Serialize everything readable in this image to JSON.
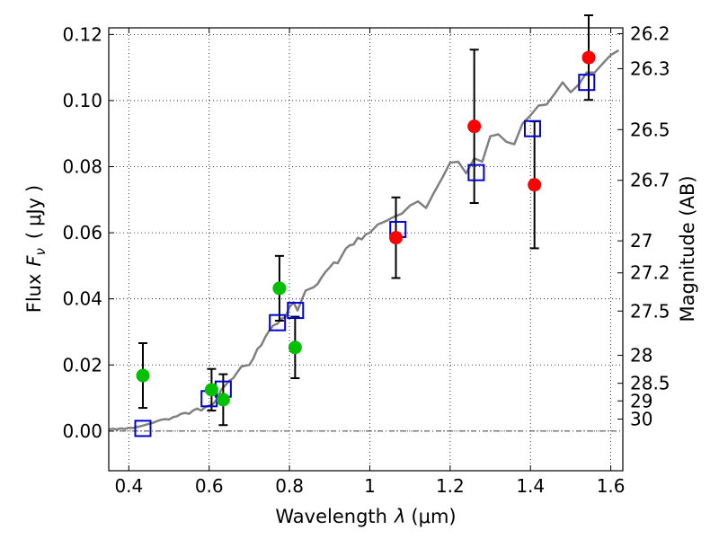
{
  "chart_data": {
    "type": "scatter",
    "xlabel_prefix": "Wavelength",
    "xlabel_symbol": "λ",
    "xlabel_unit": "(μm)",
    "ylabel_prefix": "Flux",
    "ylabel_symbol": "F",
    "ylabel_subscript": "ν",
    "ylabel_unit_open": "(",
    "ylabel_unit": "μJy",
    "ylabel_unit_close": ")",
    "y2label": "Magnitude (AB)",
    "xlim": [
      0.35,
      1.63
    ],
    "ylim": [
      -0.012,
      0.122
    ],
    "xticks": [
      0.4,
      0.6,
      0.8,
      1.0,
      1.2,
      1.4,
      1.6
    ],
    "xtick_labels": [
      "0.4",
      "0.6",
      "0.8",
      "1",
      "1.2",
      "1.4",
      "1.6"
    ],
    "yticks": [
      0.0,
      0.02,
      0.04,
      0.06,
      0.08,
      0.1,
      0.12
    ],
    "ytick_labels": [
      "0.00",
      "0.02",
      "0.04",
      "0.06",
      "0.08",
      "0.10",
      "0.12"
    ],
    "y2ticks": [
      26.2,
      26.3,
      26.5,
      26.7,
      27,
      27.2,
      27.5,
      28,
      28.5,
      29,
      30
    ],
    "y2tick_labels": [
      "26.2",
      "26.3",
      "26.5",
      "26.7",
      "27",
      "27.2",
      "27.5",
      "28",
      "28.5",
      "29",
      "30"
    ],
    "grid": true,
    "colors": {
      "model": "#808080",
      "green_points": "#00c000",
      "red_points": "#ff0000",
      "squares": "#0000cc",
      "errorbars": "#000000",
      "zero_line": "#000000"
    },
    "model_spectrum": {
      "x": [
        0.35,
        0.36,
        0.37,
        0.38,
        0.39,
        0.4,
        0.41,
        0.42,
        0.43,
        0.44,
        0.45,
        0.46,
        0.47,
        0.48,
        0.49,
        0.5,
        0.51,
        0.52,
        0.53,
        0.54,
        0.55,
        0.56,
        0.57,
        0.58,
        0.59,
        0.6,
        0.61,
        0.62,
        0.63,
        0.64,
        0.65,
        0.66,
        0.67,
        0.68,
        0.69,
        0.7,
        0.71,
        0.72,
        0.73,
        0.74,
        0.75,
        0.76,
        0.77,
        0.78,
        0.79,
        0.8,
        0.81,
        0.82,
        0.83,
        0.84,
        0.85,
        0.86,
        0.87,
        0.88,
        0.89,
        0.9,
        0.91,
        0.92,
        0.93,
        0.94,
        0.95,
        0.96,
        0.97,
        0.98,
        0.99,
        1.0,
        1.02,
        1.04,
        1.06,
        1.08,
        1.1,
        1.12,
        1.14,
        1.16,
        1.18,
        1.2,
        1.22,
        1.24,
        1.26,
        1.28,
        1.3,
        1.32,
        1.34,
        1.36,
        1.38,
        1.4,
        1.42,
        1.44,
        1.46,
        1.48,
        1.5,
        1.52,
        1.54,
        1.56,
        1.58,
        1.6,
        1.62
      ],
      "y": [
        0.0005,
        0.0007,
        0.0005,
        0.0008,
        0.0006,
        0.001,
        0.0009,
        0.0012,
        0.0015,
        0.0018,
        0.0022,
        0.0025,
        0.003,
        0.0034,
        0.0036,
        0.0035,
        0.0042,
        0.0045,
        0.0052,
        0.0055,
        0.0052,
        0.0062,
        0.0068,
        0.0062,
        0.0072,
        0.0078,
        0.0082,
        0.0098,
        0.0125,
        0.0138,
        0.0152,
        0.016,
        0.0178,
        0.0195,
        0.0198,
        0.02,
        0.022,
        0.0248,
        0.026,
        0.0285,
        0.0305,
        0.032,
        0.0325,
        0.034,
        0.0345,
        0.0375,
        0.039,
        0.0365,
        0.0395,
        0.0425,
        0.043,
        0.0435,
        0.0445,
        0.0465,
        0.0482,
        0.0495,
        0.051,
        0.0508,
        0.053,
        0.0552,
        0.0562,
        0.0565,
        0.0585,
        0.058,
        0.0595,
        0.06,
        0.0625,
        0.0635,
        0.0648,
        0.0658,
        0.0682,
        0.0695,
        0.0675,
        0.0722,
        0.0765,
        0.0812,
        0.0815,
        0.078,
        0.0825,
        0.0815,
        0.0892,
        0.0898,
        0.0875,
        0.0868,
        0.093,
        0.0955,
        0.0985,
        0.0988,
        0.102,
        0.1055,
        0.1025,
        0.1048,
        0.1085,
        0.1085,
        0.1112,
        0.1138,
        0.1152
      ]
    },
    "green_points": [
      {
        "x": 0.435,
        "y": 0.0168,
        "err": 0.0098
      },
      {
        "x": 0.606,
        "y": 0.0125,
        "err": 0.0063
      },
      {
        "x": 0.635,
        "y": 0.0095,
        "err": 0.0077
      },
      {
        "x": 0.775,
        "y": 0.0432,
        "err": 0.0098
      },
      {
        "x": 0.814,
        "y": 0.0253,
        "err": 0.0093
      }
    ],
    "red_points": [
      {
        "x": 1.065,
        "y": 0.0585,
        "err": 0.0122
      },
      {
        "x": 1.26,
        "y": 0.0922,
        "err": 0.0232
      },
      {
        "x": 1.41,
        "y": 0.0745,
        "err": 0.0192
      },
      {
        "x": 1.545,
        "y": 0.113,
        "err": 0.0128
      }
    ],
    "squares": [
      {
        "x": 0.435,
        "y": 0.0008
      },
      {
        "x": 0.6,
        "y": 0.0098
      },
      {
        "x": 0.635,
        "y": 0.0127
      },
      {
        "x": 0.77,
        "y": 0.0328
      },
      {
        "x": 0.815,
        "y": 0.0365
      },
      {
        "x": 1.07,
        "y": 0.061
      },
      {
        "x": 1.265,
        "y": 0.0782
      },
      {
        "x": 1.405,
        "y": 0.0915
      },
      {
        "x": 1.54,
        "y": 0.1055
      }
    ]
  }
}
